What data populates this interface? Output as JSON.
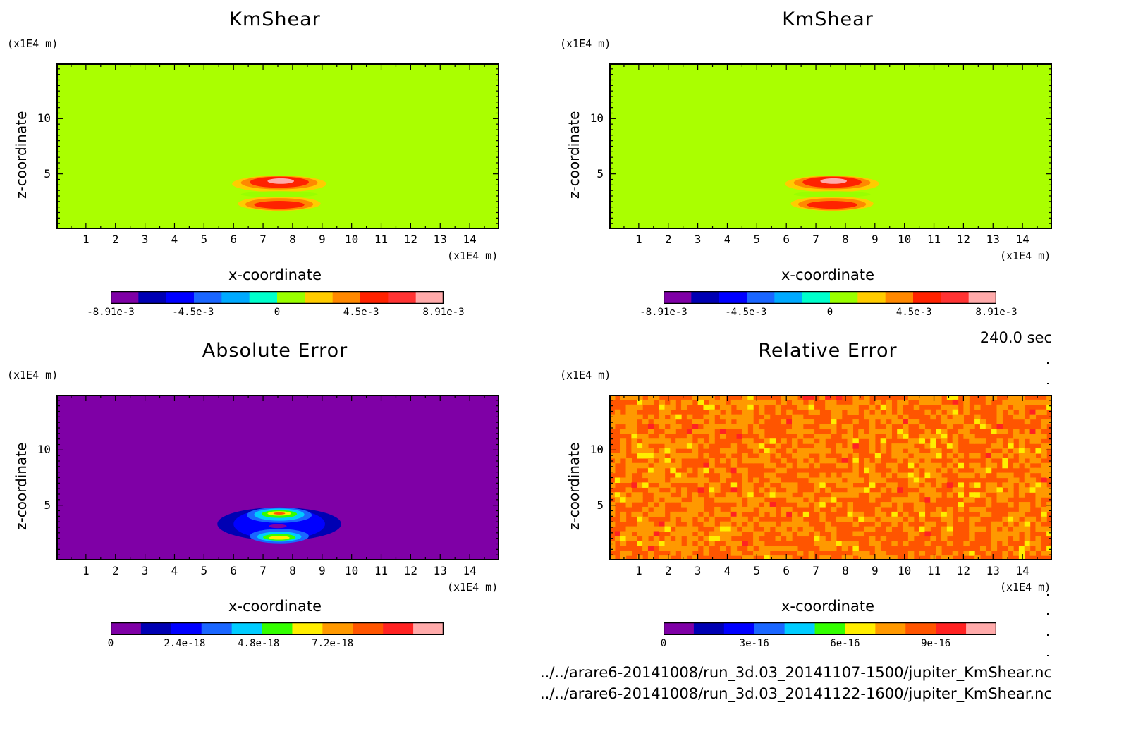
{
  "timestamp": "240.0 sec",
  "files": [
    "../../arare6-20141008/run_3d.03_20141107-1500/jupiter_KmShear.nc",
    "../../arare6-20141008/run_3d.03_20141122-1600/jupiter_KmShear.nc"
  ],
  "chart_data": [
    {
      "type": "heatmap",
      "title": "KmShear",
      "xlabel": "x-coordinate",
      "ylabel": "z-coordinate",
      "xunit": "(x1E4 m)",
      "yunit": "(x1E4 m)",
      "xticks": [
        "1",
        "2",
        "3",
        "4",
        "5",
        "6",
        "7",
        "8",
        "9",
        "10",
        "11",
        "12",
        "13",
        "14"
      ],
      "yticks": [
        "5",
        "10"
      ],
      "xlim": [
        0,
        15
      ],
      "ylim": [
        0,
        15
      ],
      "field": "kmshear",
      "background": "#aaff00",
      "colorbar": {
        "colors": [
          "#7f00a6",
          "#0000b3",
          "#0000ff",
          "#1a66ff",
          "#00aaff",
          "#00ffcc",
          "#99ff00",
          "#ffcc00",
          "#ff8800",
          "#ff2200",
          "#ff3333",
          "#ffaaaa"
        ],
        "labels": [
          {
            "text": "-8.91e-3",
            "value": -0.00891
          },
          {
            "text": "-4.5e-3",
            "value": -0.0045
          },
          {
            "text": "0",
            "value": 0
          },
          {
            "text": "4.5e-3",
            "value": 0.0045
          },
          {
            "text": "8.91e-3",
            "value": 0.00891
          }
        ],
        "range": [
          -0.00891,
          0.00891
        ]
      }
    },
    {
      "type": "heatmap",
      "title": "KmShear",
      "xlabel": "x-coordinate",
      "ylabel": "z-coordinate",
      "xunit": "(x1E4 m)",
      "yunit": "(x1E4 m)",
      "xticks": [
        "1",
        "2",
        "3",
        "4",
        "5",
        "6",
        "7",
        "8",
        "9",
        "10",
        "11",
        "12",
        "13",
        "14"
      ],
      "yticks": [
        "5",
        "10"
      ],
      "xlim": [
        0,
        15
      ],
      "ylim": [
        0,
        15
      ],
      "field": "kmshear",
      "background": "#aaff00",
      "colorbar": {
        "colors": [
          "#7f00a6",
          "#0000b3",
          "#0000ff",
          "#1a66ff",
          "#00aaff",
          "#00ffcc",
          "#99ff00",
          "#ffcc00",
          "#ff8800",
          "#ff2200",
          "#ff3333",
          "#ffaaaa"
        ],
        "labels": [
          {
            "text": "-8.91e-3",
            "value": -0.00891
          },
          {
            "text": "-4.5e-3",
            "value": -0.0045
          },
          {
            "text": "0",
            "value": 0
          },
          {
            "text": "4.5e-3",
            "value": 0.0045
          },
          {
            "text": "8.91e-3",
            "value": 0.00891
          }
        ],
        "range": [
          -0.00891,
          0.00891
        ]
      }
    },
    {
      "type": "heatmap",
      "title": "Absolute Error",
      "xlabel": "x-coordinate",
      "ylabel": "z-coordinate",
      "xunit": "(x1E4 m)",
      "yunit": "(x1E4 m)",
      "xticks": [
        "1",
        "2",
        "3",
        "4",
        "5",
        "6",
        "7",
        "8",
        "9",
        "10",
        "11",
        "12",
        "13",
        "14"
      ],
      "yticks": [
        "5",
        "10"
      ],
      "xlim": [
        0,
        15
      ],
      "ylim": [
        0,
        15
      ],
      "field": "abserr",
      "background": "#7f00a6",
      "colorbar": {
        "colors": [
          "#7f00a6",
          "#0000b3",
          "#0000ff",
          "#1a66ff",
          "#00ccff",
          "#33ff00",
          "#ffee00",
          "#ff9900",
          "#ff5500",
          "#ff2222",
          "#ffaaaa"
        ],
        "labels": [
          {
            "text": "0",
            "value": 0
          },
          {
            "text": "2.4e-18",
            "value": 2.4e-18
          },
          {
            "text": "4.8e-18",
            "value": 4.8e-18
          },
          {
            "text": "7.2e-18",
            "value": 7.2e-18
          }
        ],
        "range": [
          0,
          1.08e-17
        ]
      }
    },
    {
      "type": "heatmap",
      "title": "Relative Error",
      "xlabel": "x-coordinate",
      "ylabel": "z-coordinate",
      "xunit": "(x1E4 m)",
      "yunit": "(x1E4 m)",
      "xticks": [
        "1",
        "2",
        "3",
        "4",
        "5",
        "6",
        "7",
        "8",
        "9",
        "10",
        "11",
        "12",
        "13",
        "14"
      ],
      "yticks": [
        "5",
        "10"
      ],
      "xlim": [
        0,
        15
      ],
      "ylim": [
        0,
        15
      ],
      "field": "relerr",
      "background": "#ff5500",
      "colorbar": {
        "colors": [
          "#7f00a6",
          "#0000b3",
          "#0000ff",
          "#1a66ff",
          "#00ccff",
          "#33ff00",
          "#ffee00",
          "#ff9900",
          "#ff5500",
          "#ff2222",
          "#ffaaaa"
        ],
        "labels": [
          {
            "text": "0",
            "value": 0
          },
          {
            "text": "3e-16",
            "value": 3e-16
          },
          {
            "text": "6e-16",
            "value": 6e-16
          },
          {
            "text": "9e-16",
            "value": 9e-16
          }
        ],
        "range": [
          0,
          1.1e-15
        ]
      }
    }
  ]
}
